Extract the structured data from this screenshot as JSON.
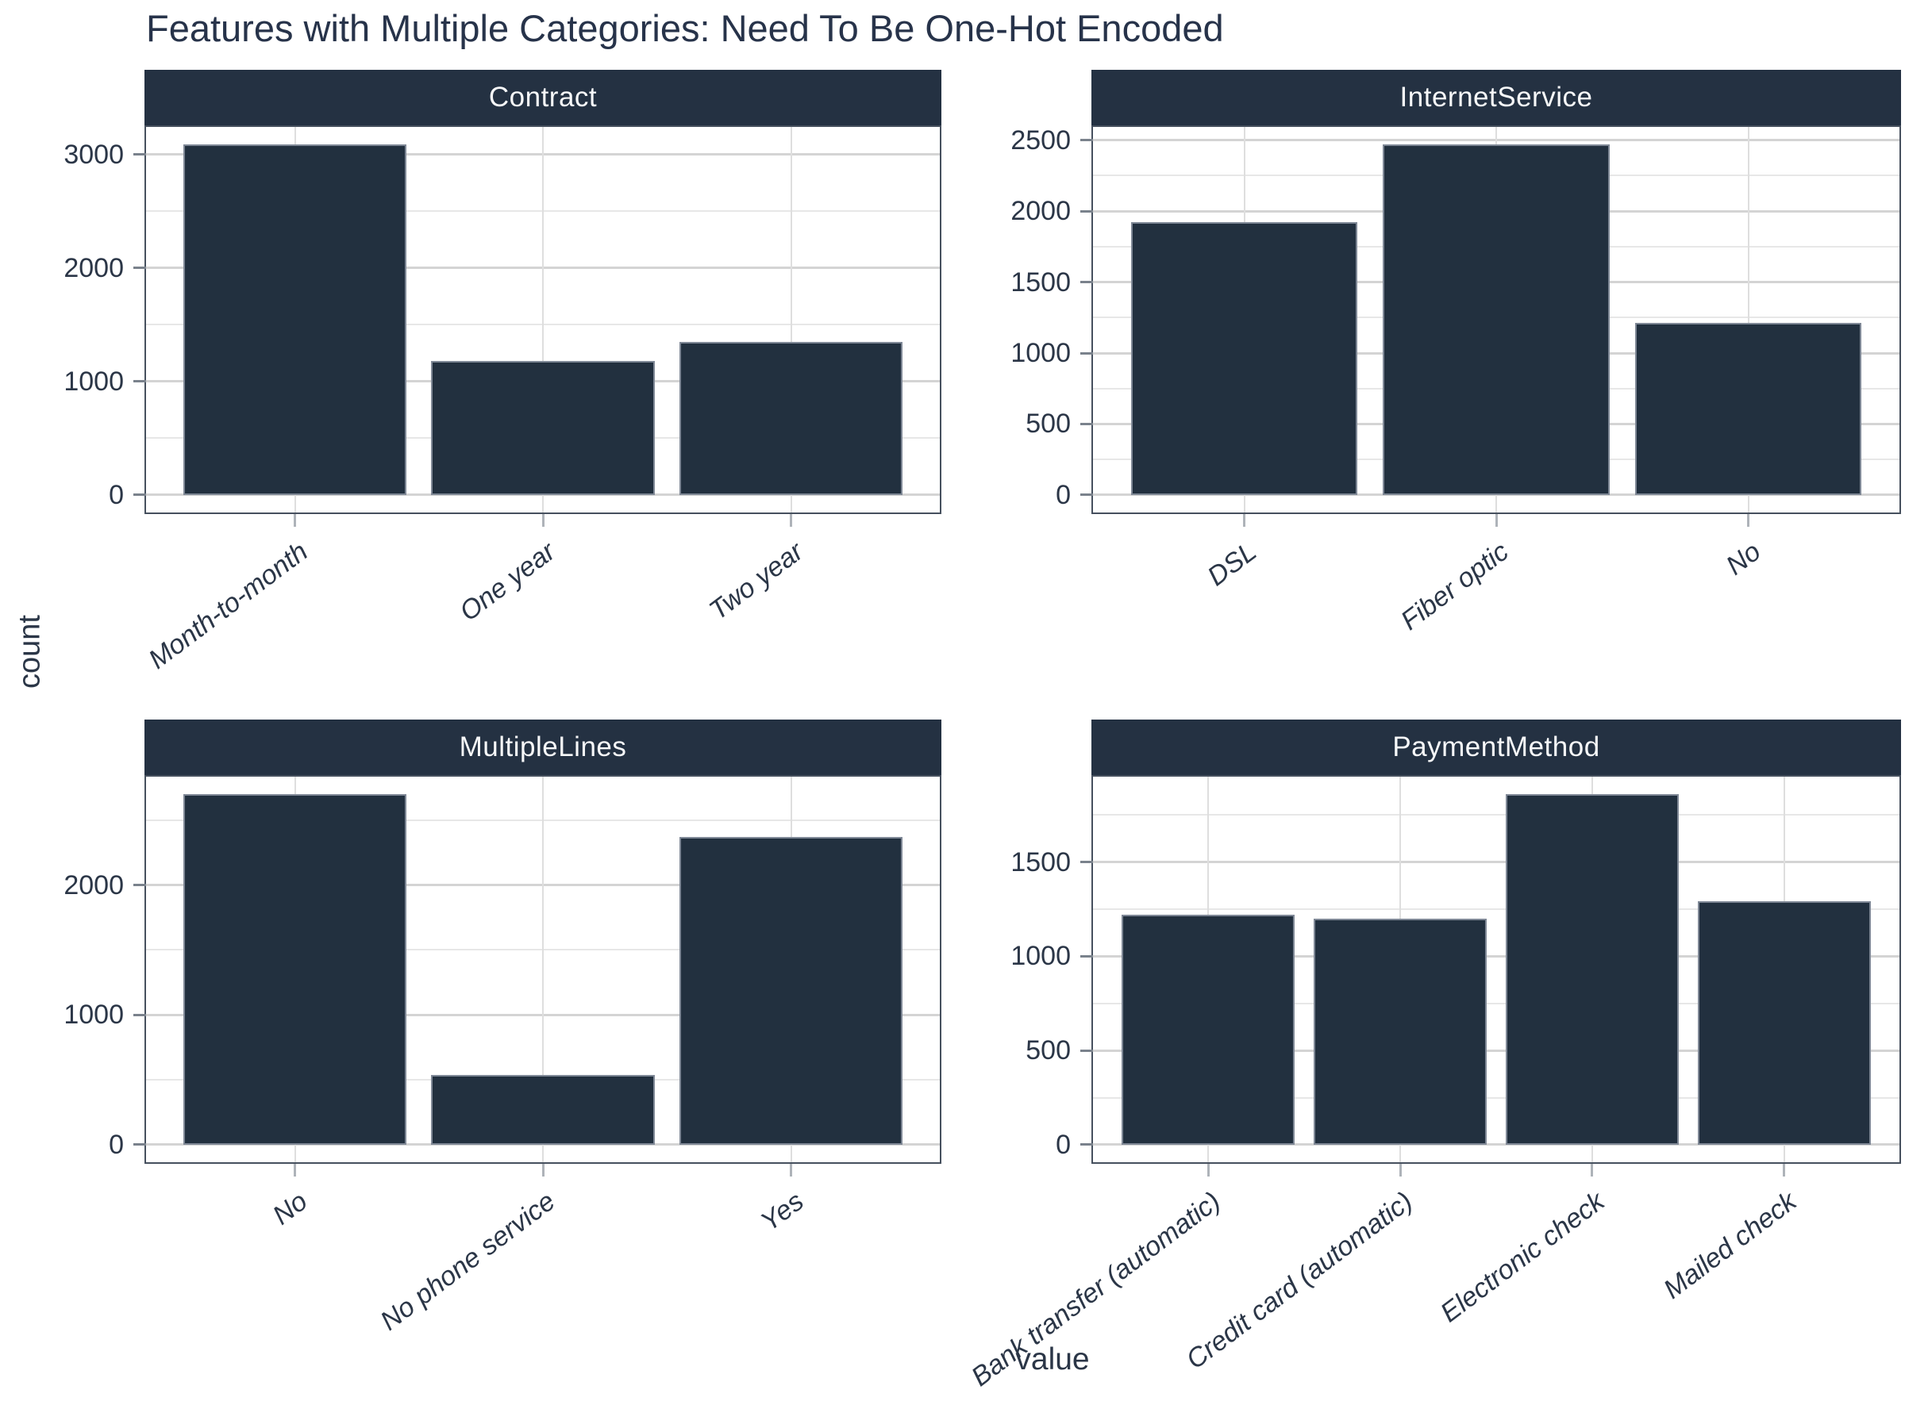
{
  "chart_data": {
    "type": "bar",
    "title": "Features with Multiple Categories: Need To Be One-Hot Encoded",
    "xlabel": "value",
    "ylabel": "count",
    "grid": true,
    "legend": false,
    "facet_layout": "2x2",
    "bar_color": "#22303f",
    "bar_edge_color": "#7f8896",
    "strip_bg": "#243142",
    "strip_text_color": "#f7f8f9",
    "text_color": "#2b3647",
    "facets": [
      {
        "name": "Contract",
        "categories": [
          "Month-to-month",
          "One year",
          "Two year"
        ],
        "values": [
          3090,
          1180,
          1350
        ],
        "y_ticks_major": [
          0,
          1000,
          2000,
          3000
        ],
        "y_ticks_minor": [
          500,
          1500,
          2500
        ],
        "ylim": [
          0,
          3245
        ]
      },
      {
        "name": "InternetService",
        "categories": [
          "DSL",
          "Fiber optic",
          "No"
        ],
        "values": [
          1920,
          2470,
          1215
        ],
        "y_ticks_major": [
          0,
          500,
          1000,
          1500,
          2000,
          2500
        ],
        "y_ticks_minor": [
          250,
          750,
          1250,
          1750,
          2250
        ],
        "ylim": [
          0,
          2595
        ]
      },
      {
        "name": "MultipleLines",
        "categories": [
          "No",
          "No phone service",
          "Yes"
        ],
        "values": [
          2700,
          540,
          2370
        ],
        "y_ticks_major": [
          0,
          1000,
          2000
        ],
        "y_ticks_minor": [
          500,
          1500,
          2500
        ],
        "ylim": [
          0,
          2835
        ]
      },
      {
        "name": "PaymentMethod",
        "categories": [
          "Bank transfer (automatic)",
          "Credit card (automatic)",
          "Electronic check",
          "Mailed check"
        ],
        "values": [
          1220,
          1200,
          1860,
          1290
        ],
        "y_ticks_major": [
          0,
          500,
          1000,
          1500
        ],
        "y_ticks_minor": [
          250,
          750,
          1250,
          1750
        ],
        "ylim": [
          0,
          1955
        ]
      }
    ]
  }
}
